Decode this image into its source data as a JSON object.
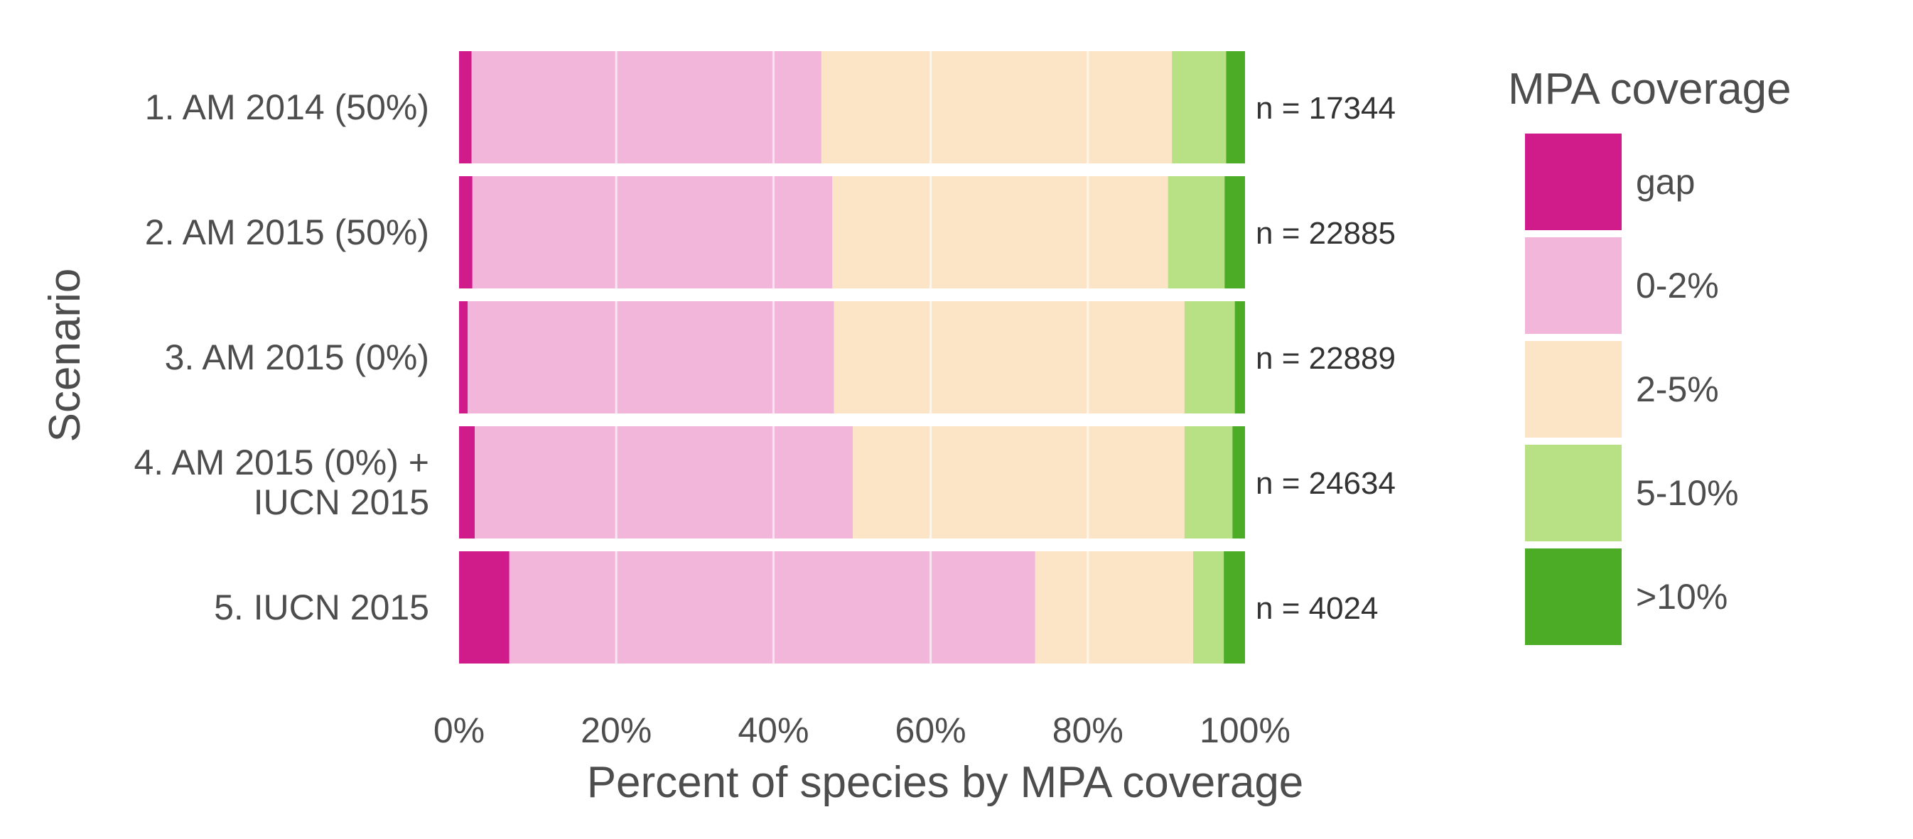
{
  "chart_data": {
    "type": "bar",
    "orientation": "horizontal",
    "stacked": true,
    "categories": [
      "1. AM 2014 (50%)",
      "2. AM 2015 (50%)",
      "3. AM 2015 (0%)",
      "4. AM 2015 (0%) +\nIUCN 2015",
      "5. IUCN 2015"
    ],
    "n_labels": [
      "n = 17344",
      "n = 22885",
      "n = 22889",
      "n = 24634",
      "n = 4024"
    ],
    "series": [
      {
        "name": "gap",
        "color": "#d01c8b",
        "values": [
          1.6,
          1.7,
          1.1,
          2.0,
          6.4
        ]
      },
      {
        "name": "0-2%",
        "color": "#f1b6da",
        "values": [
          44.5,
          45.8,
          46.6,
          48.1,
          66.9
        ]
      },
      {
        "name": "2-5%",
        "color": "#fce4c6",
        "values": [
          44.6,
          42.7,
          44.6,
          42.2,
          20.1
        ]
      },
      {
        "name": "5-10%",
        "color": "#b8e186",
        "values": [
          6.9,
          7.2,
          6.4,
          6.1,
          3.9
        ]
      },
      {
        "name": ">10%",
        "color": "#4dac26",
        "values": [
          2.4,
          2.6,
          1.3,
          1.6,
          2.7
        ]
      }
    ],
    "xlabel": "Percent of species by MPA coverage",
    "ylabel": "Scenario",
    "xlim": [
      0,
      100
    ],
    "x_ticks": [
      "0%",
      "20%",
      "40%",
      "60%",
      "80%",
      "100%"
    ],
    "grid": true,
    "legend_title": "MPA coverage",
    "legend_position": "right"
  }
}
